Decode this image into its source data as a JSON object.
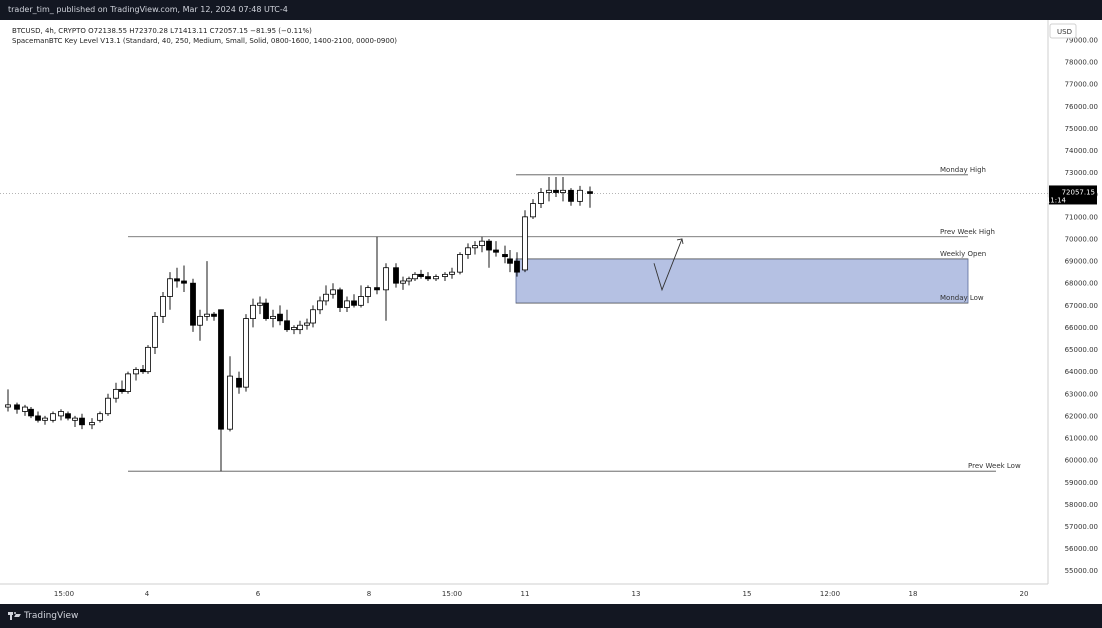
{
  "header": {
    "publisher": "trader_tim_ published on TradingView.com, Mar 12, 2024 07:48 UTC-4"
  },
  "legend": {
    "line1": "BTCUSD, 4h, CRYPTO  O72138.55  H72370.28  L71413.11  C72057.15  −81.95 (−0.11%)",
    "line2": "SpacemanBTC Key Level V13.1 (Standard, 40, 250, Medium, Small, Solid, 0800-1600, 1400-2100, 0000-0900)"
  },
  "footer": {
    "brand": "TradingView"
  },
  "currency": "USD",
  "price_tag": {
    "price": "72057.15",
    "countdown": "11:14"
  },
  "colors": {
    "background": "#131722",
    "chart_bg": "#ffffff",
    "candle": "#000000",
    "zone_fill": "#b5c1e3",
    "zone_stroke": "#5b6b99"
  },
  "chart_data": {
    "type": "candlestick",
    "symbol": "BTCUSD",
    "interval": "4h",
    "exchange": "CRYPTO",
    "ylim": [
      54400,
      79900
    ],
    "xlim": [
      0,
      1048
    ],
    "y_ticks": [
      "79000.00",
      "78000.00",
      "77000.00",
      "76000.00",
      "75000.00",
      "74000.00",
      "73000.00",
      "72000.00",
      "71000.00",
      "70000.00",
      "69000.00",
      "68000.00",
      "67000.00",
      "66000.00",
      "65000.00",
      "64000.00",
      "63000.00",
      "62000.00",
      "61000.00",
      "60000.00",
      "59000.00",
      "58000.00",
      "57000.00",
      "56000.00",
      "55000.00"
    ],
    "x_ticks": [
      {
        "label": "15:00",
        "x": 64
      },
      {
        "label": "4",
        "x": 147
      },
      {
        "label": "6",
        "x": 258
      },
      {
        "label": "8",
        "x": 369
      },
      {
        "label": "15:00",
        "x": 452
      },
      {
        "label": "11",
        "x": 525
      },
      {
        "label": "13",
        "x": 636
      },
      {
        "label": "15",
        "x": 747
      },
      {
        "label": "12:00",
        "x": 830
      },
      {
        "label": "18",
        "x": 913
      },
      {
        "label": "20",
        "x": 1024
      }
    ],
    "candles": [
      {
        "x": 8,
        "o": 62400,
        "h": 63200,
        "l": 62200,
        "c": 62500
      },
      {
        "x": 17,
        "o": 62500,
        "h": 62600,
        "l": 62100,
        "c": 62300
      },
      {
        "x": 25,
        "o": 62200,
        "h": 62500,
        "l": 62000,
        "c": 62400
      },
      {
        "x": 31,
        "o": 62300,
        "h": 62400,
        "l": 61900,
        "c": 62000
      },
      {
        "x": 38,
        "o": 62000,
        "h": 62200,
        "l": 61700,
        "c": 61800
      },
      {
        "x": 45,
        "o": 61800,
        "h": 62000,
        "l": 61600,
        "c": 61900
      },
      {
        "x": 53,
        "o": 61800,
        "h": 62200,
        "l": 61700,
        "c": 62100
      },
      {
        "x": 61,
        "o": 62000,
        "h": 62300,
        "l": 61800,
        "c": 62200
      },
      {
        "x": 68,
        "o": 62100,
        "h": 62200,
        "l": 61800,
        "c": 61900
      },
      {
        "x": 75,
        "o": 61800,
        "h": 62000,
        "l": 61500,
        "c": 61900
      },
      {
        "x": 82,
        "o": 61900,
        "h": 62100,
        "l": 61400,
        "c": 61600
      },
      {
        "x": 92,
        "o": 61600,
        "h": 61900,
        "l": 61400,
        "c": 61700
      },
      {
        "x": 100,
        "o": 61800,
        "h": 62200,
        "l": 61700,
        "c": 62100
      },
      {
        "x": 108,
        "o": 62100,
        "h": 63000,
        "l": 62000,
        "c": 62800
      },
      {
        "x": 116,
        "o": 62800,
        "h": 63500,
        "l": 62600,
        "c": 63200
      },
      {
        "x": 122,
        "o": 63200,
        "h": 63600,
        "l": 63000,
        "c": 63100
      },
      {
        "x": 128,
        "o": 63100,
        "h": 64000,
        "l": 63000,
        "c": 63900
      },
      {
        "x": 136,
        "o": 63900,
        "h": 64200,
        "l": 63600,
        "c": 64100
      },
      {
        "x": 143,
        "o": 64100,
        "h": 64300,
        "l": 63900,
        "c": 64000
      },
      {
        "x": 148,
        "o": 64000,
        "h": 65200,
        "l": 63900,
        "c": 65100
      },
      {
        "x": 155,
        "o": 65100,
        "h": 66700,
        "l": 64800,
        "c": 66500
      },
      {
        "x": 163,
        "o": 66500,
        "h": 67600,
        "l": 66200,
        "c": 67400
      },
      {
        "x": 170,
        "o": 67400,
        "h": 68500,
        "l": 66800,
        "c": 68200
      },
      {
        "x": 177,
        "o": 68200,
        "h": 68700,
        "l": 67800,
        "c": 68100
      },
      {
        "x": 184,
        "o": 68100,
        "h": 68800,
        "l": 67600,
        "c": 68000
      },
      {
        "x": 193,
        "o": 68000,
        "h": 68200,
        "l": 65800,
        "c": 66100
      },
      {
        "x": 200,
        "o": 66100,
        "h": 66800,
        "l": 65400,
        "c": 66500
      },
      {
        "x": 207,
        "o": 66500,
        "h": 69000,
        "l": 66300,
        "c": 66600
      },
      {
        "x": 214,
        "o": 66600,
        "h": 66700,
        "l": 66300,
        "c": 66500
      },
      {
        "x": 221,
        "o": 66800,
        "h": 66800,
        "l": 59500,
        "c": 61400
      },
      {
        "x": 230,
        "o": 61400,
        "h": 64700,
        "l": 61300,
        "c": 63800
      },
      {
        "x": 239,
        "o": 63700,
        "h": 64000,
        "l": 63000,
        "c": 63300
      },
      {
        "x": 246,
        "o": 63300,
        "h": 66600,
        "l": 63100,
        "c": 66400
      },
      {
        "x": 253,
        "o": 66400,
        "h": 67300,
        "l": 66000,
        "c": 67000
      },
      {
        "x": 260,
        "o": 67000,
        "h": 67400,
        "l": 66600,
        "c": 67100
      },
      {
        "x": 266,
        "o": 67100,
        "h": 67300,
        "l": 66300,
        "c": 66400
      },
      {
        "x": 273,
        "o": 66400,
        "h": 66800,
        "l": 66000,
        "c": 66500
      },
      {
        "x": 280,
        "o": 66600,
        "h": 67000,
        "l": 66100,
        "c": 66300
      },
      {
        "x": 287,
        "o": 66300,
        "h": 66800,
        "l": 65800,
        "c": 65900
      },
      {
        "x": 294,
        "o": 65900,
        "h": 66100,
        "l": 65700,
        "c": 66000
      },
      {
        "x": 300,
        "o": 65900,
        "h": 66300,
        "l": 65700,
        "c": 66100
      },
      {
        "x": 307,
        "o": 66100,
        "h": 66400,
        "l": 65900,
        "c": 66200
      },
      {
        "x": 313,
        "o": 66200,
        "h": 67000,
        "l": 66000,
        "c": 66800
      },
      {
        "x": 320,
        "o": 66800,
        "h": 67400,
        "l": 66600,
        "c": 67200
      },
      {
        "x": 326,
        "o": 67200,
        "h": 67900,
        "l": 67000,
        "c": 67500
      },
      {
        "x": 333,
        "o": 67500,
        "h": 68000,
        "l": 67300,
        "c": 67700
      },
      {
        "x": 340,
        "o": 67700,
        "h": 67800,
        "l": 66700,
        "c": 66900
      },
      {
        "x": 347,
        "o": 66900,
        "h": 67400,
        "l": 66700,
        "c": 67200
      },
      {
        "x": 354,
        "o": 67200,
        "h": 67500,
        "l": 66900,
        "c": 67000
      },
      {
        "x": 361,
        "o": 67000,
        "h": 67900,
        "l": 66900,
        "c": 67400
      },
      {
        "x": 368,
        "o": 67400,
        "h": 67900,
        "l": 67100,
        "c": 67800
      },
      {
        "x": 377,
        "o": 67800,
        "h": 70100,
        "l": 67500,
        "c": 67700
      },
      {
        "x": 386,
        "o": 67700,
        "h": 68900,
        "l": 66300,
        "c": 68700
      },
      {
        "x": 396,
        "o": 68700,
        "h": 68900,
        "l": 67800,
        "c": 68000
      },
      {
        "x": 403,
        "o": 68000,
        "h": 68300,
        "l": 67700,
        "c": 68100
      },
      {
        "x": 409,
        "o": 68100,
        "h": 68300,
        "l": 67900,
        "c": 68200
      },
      {
        "x": 415,
        "o": 68200,
        "h": 68500,
        "l": 68100,
        "c": 68400
      },
      {
        "x": 421,
        "o": 68400,
        "h": 68600,
        "l": 68200,
        "c": 68300
      },
      {
        "x": 428,
        "o": 68300,
        "h": 68500,
        "l": 68100,
        "c": 68200
      },
      {
        "x": 436,
        "o": 68200,
        "h": 68400,
        "l": 68100,
        "c": 68300
      },
      {
        "x": 445,
        "o": 68300,
        "h": 68500,
        "l": 68100,
        "c": 68400
      },
      {
        "x": 452,
        "o": 68400,
        "h": 68700,
        "l": 68200,
        "c": 68500
      },
      {
        "x": 460,
        "o": 68500,
        "h": 69400,
        "l": 68400,
        "c": 69300
      },
      {
        "x": 468,
        "o": 69300,
        "h": 69800,
        "l": 69100,
        "c": 69600
      },
      {
        "x": 475,
        "o": 69600,
        "h": 69900,
        "l": 69300,
        "c": 69700
      },
      {
        "x": 482,
        "o": 69700,
        "h": 70100,
        "l": 69400,
        "c": 69900
      },
      {
        "x": 489,
        "o": 69900,
        "h": 70000,
        "l": 68700,
        "c": 69500
      },
      {
        "x": 496,
        "o": 69500,
        "h": 69900,
        "l": 69200,
        "c": 69400
      },
      {
        "x": 505,
        "o": 69300,
        "h": 69700,
        "l": 68900,
        "c": 69200
      },
      {
        "x": 510,
        "o": 69100,
        "h": 69500,
        "l": 68500,
        "c": 68900
      },
      {
        "x": 517,
        "o": 69000,
        "h": 69400,
        "l": 68300,
        "c": 68500
      },
      {
        "x": 525,
        "o": 68600,
        "h": 71300,
        "l": 68500,
        "c": 71000
      },
      {
        "x": 533,
        "o": 71000,
        "h": 71800,
        "l": 70900,
        "c": 71600
      },
      {
        "x": 541,
        "o": 71600,
        "h": 72300,
        "l": 71400,
        "c": 72100
      },
      {
        "x": 549,
        "o": 72100,
        "h": 72800,
        "l": 71700,
        "c": 72200
      },
      {
        "x": 556,
        "o": 72200,
        "h": 72800,
        "l": 71900,
        "c": 72100
      },
      {
        "x": 563,
        "o": 72100,
        "h": 72800,
        "l": 71700,
        "c": 72200
      },
      {
        "x": 571,
        "o": 72200,
        "h": 72300,
        "l": 71500,
        "c": 71700
      },
      {
        "x": 580,
        "o": 71700,
        "h": 72400,
        "l": 71500,
        "c": 72200
      },
      {
        "x": 590,
        "o": 72138.55,
        "h": 72370.28,
        "l": 71413.11,
        "c": 72057.15
      }
    ],
    "levels": [
      {
        "label": "Monday High",
        "price": 72900,
        "x1": 516,
        "x2": 968
      },
      {
        "label": "Prev Week High",
        "price": 70100,
        "x1": 128,
        "x2": 968
      },
      {
        "label": "Weekly Open",
        "price": 69100,
        "x1": 516,
        "x2": 968
      },
      {
        "label": "Monday Low",
        "price": 67100,
        "x1": 516,
        "x2": 968
      },
      {
        "label": "Prev Week Low",
        "price": 59500,
        "x1": 128,
        "x2": 996
      }
    ],
    "zone": {
      "x1": 516,
      "x2": 968,
      "top": 69100,
      "bottom": 67100
    },
    "current_price": 72057.15,
    "annotation_path": [
      [
        654,
        68900
      ],
      [
        662,
        67700
      ],
      [
        682,
        70000
      ]
    ]
  }
}
